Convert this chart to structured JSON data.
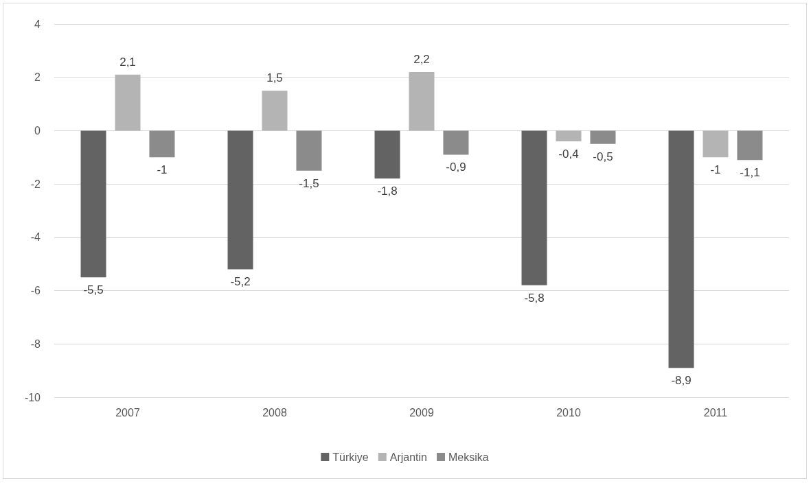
{
  "chart_data": {
    "type": "bar",
    "categories": [
      "2007",
      "2008",
      "2009",
      "2010",
      "2011"
    ],
    "series": [
      {
        "name": "Türkiye",
        "color": "#636363",
        "values": [
          -5.5,
          -5.2,
          -1.8,
          -5.8,
          -8.9
        ],
        "value_labels": [
          "-5,5",
          "-5,2",
          "-1,8",
          "-5,8",
          "-8,9"
        ]
      },
      {
        "name": "Arjantin",
        "color": "#b4b4b4",
        "values": [
          2.1,
          1.5,
          2.2,
          -0.4,
          -1
        ],
        "value_labels": [
          "2,1",
          "1,5",
          "2,2",
          "-0,4",
          "-1"
        ]
      },
      {
        "name": "Meksika",
        "color": "#8b8b8b",
        "values": [
          -1,
          -1.5,
          -0.9,
          -0.5,
          -1.1
        ],
        "value_labels": [
          "-1",
          "-1,5",
          "-0,9",
          "-0,5",
          "-1,1"
        ]
      }
    ],
    "ylim": [
      -10,
      4
    ],
    "yticks": [
      -10,
      -8,
      -6,
      -4,
      -2,
      0,
      2,
      4
    ],
    "grid": "y",
    "legend": "bottom"
  }
}
